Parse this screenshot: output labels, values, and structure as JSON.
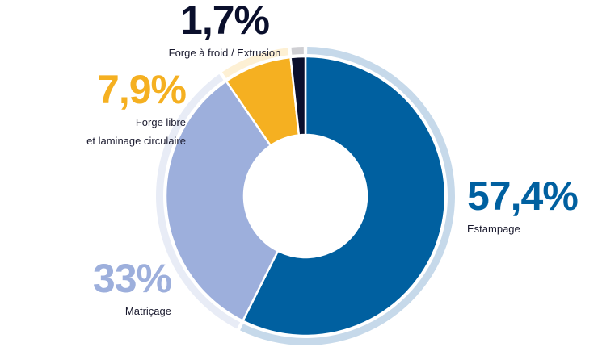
{
  "chart_data": {
    "type": "donut",
    "categories": [
      "Estampage",
      "Matriçage",
      "Forge libre\net laminage circulaire",
      "Forge à froid / Extrusion"
    ],
    "values": [
      57.4,
      33,
      7.9,
      1.7
    ],
    "value_labels": [
      "57,4%",
      "33%",
      "7,9%",
      "1,7%"
    ],
    "colors": [
      "#0060a0",
      "#9dafdc",
      "#f5b021",
      "#0a0f2c"
    ],
    "ring_colors": [
      "#c6d9ea",
      "#e8ecf6",
      "#fdf0d4",
      "#cfcfd3"
    ]
  }
}
